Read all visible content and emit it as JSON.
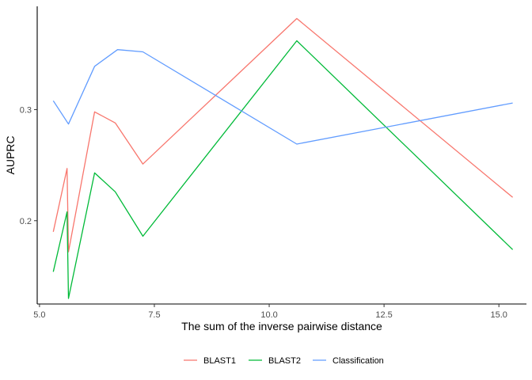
{
  "chart_data": {
    "type": "line",
    "xlabel": "The sum of the inverse pairwise distance",
    "ylabel": "AUPRC",
    "xlim": [
      4.95,
      15.6
    ],
    "ylim": [
      0.125,
      0.393
    ],
    "xticks": [
      {
        "value": 5.0,
        "label": "5.0"
      },
      {
        "value": 7.5,
        "label": "7.5"
      },
      {
        "value": 10.0,
        "label": "10.0"
      },
      {
        "value": 12.5,
        "label": "12.5"
      },
      {
        "value": 15.0,
        "label": "15.0"
      }
    ],
    "yticks": [
      {
        "value": 0.2,
        "label": "0.2"
      },
      {
        "value": 0.3,
        "label": "0.3"
      }
    ],
    "grid": false,
    "legend_position": "bottom",
    "series": [
      {
        "name": "BLAST1",
        "color": "#F8766D",
        "x": [
          5.3,
          5.6,
          5.63,
          6.2,
          6.65,
          7.25,
          10.6,
          15.3
        ],
        "y": [
          0.19,
          0.247,
          0.172,
          0.298,
          0.288,
          0.251,
          0.382,
          0.221
        ]
      },
      {
        "name": "BLAST2",
        "color": "#00BA38",
        "x": [
          5.3,
          5.6,
          5.63,
          6.2,
          6.65,
          7.25,
          10.6,
          15.3
        ],
        "y": [
          0.154,
          0.208,
          0.13,
          0.243,
          0.226,
          0.186,
          0.362,
          0.174
        ]
      },
      {
        "name": "Classification",
        "color": "#619CFF",
        "x": [
          5.3,
          5.63,
          6.2,
          6.7,
          7.25,
          10.6,
          15.3
        ],
        "y": [
          0.308,
          0.287,
          0.339,
          0.354,
          0.352,
          0.269,
          0.306
        ]
      }
    ]
  }
}
